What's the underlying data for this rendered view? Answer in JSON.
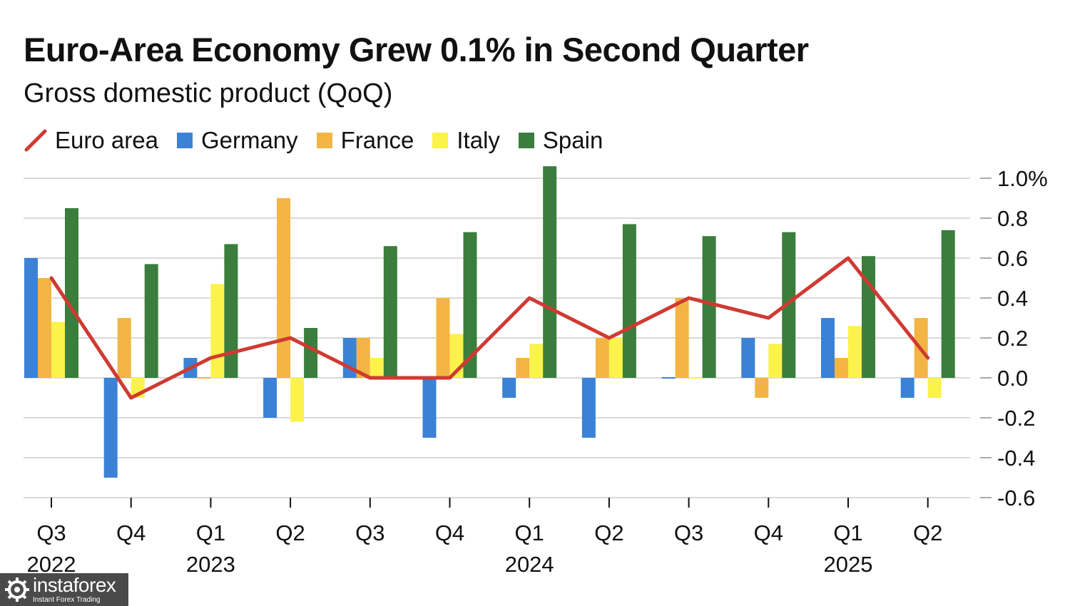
{
  "chart_data": {
    "type": "bar",
    "title": "Euro-Area Economy Grew 0.1% in Second Quarter",
    "subtitle": "Gross domestic product (QoQ)",
    "categories": [
      "Q3 2022",
      "Q4 2022",
      "Q1 2023",
      "Q2 2023",
      "Q3 2023",
      "Q4 2023",
      "Q1 2024",
      "Q2 2024",
      "Q3 2024",
      "Q4 2024",
      "Q1 2025",
      "Q2 2025"
    ],
    "quarter_labels": [
      "Q3",
      "Q4",
      "Q1",
      "Q2",
      "Q3",
      "Q4",
      "Q1",
      "Q2",
      "Q3",
      "Q4",
      "Q1",
      "Q2"
    ],
    "year_labels": [
      {
        "label": "2022",
        "index": 0
      },
      {
        "label": "2023",
        "index": 2
      },
      {
        "label": "2024",
        "index": 6
      },
      {
        "label": "2025",
        "index": 10
      }
    ],
    "series": [
      {
        "name": "Germany",
        "kind": "bar",
        "color": "#3b82d6",
        "values": [
          0.6,
          -0.5,
          0.1,
          -0.2,
          0.2,
          -0.3,
          -0.1,
          -0.3,
          0.0,
          0.2,
          0.3,
          -0.1
        ]
      },
      {
        "name": "France",
        "kind": "bar",
        "color": "#f2b544",
        "values": [
          0.5,
          0.3,
          0.0,
          0.9,
          0.2,
          0.4,
          0.1,
          0.2,
          0.4,
          -0.1,
          0.1,
          0.3
        ]
      },
      {
        "name": "Italy",
        "kind": "bar",
        "color": "#fbf24a",
        "values": [
          0.28,
          -0.1,
          0.47,
          -0.22,
          0.1,
          0.22,
          0.17,
          0.2,
          0.0,
          0.17,
          0.26,
          -0.1
        ]
      },
      {
        "name": "Spain",
        "kind": "bar",
        "color": "#3b7d3c",
        "values": [
          0.85,
          0.57,
          0.67,
          0.25,
          0.66,
          0.73,
          1.06,
          0.77,
          0.71,
          0.73,
          0.61,
          0.74
        ]
      },
      {
        "name": "Euro area",
        "kind": "line",
        "color": "#cf3a32",
        "values": [
          0.5,
          -0.1,
          0.1,
          0.2,
          0.0,
          0.0,
          0.4,
          0.2,
          0.4,
          0.3,
          0.6,
          0.1
        ]
      }
    ],
    "legend_order": [
      "Euro area",
      "Germany",
      "France",
      "Italy",
      "Spain"
    ],
    "ylim": [
      -0.6,
      1.0
    ],
    "yticks": [
      {
        "value": 1.0,
        "label": "1.0%"
      },
      {
        "value": 0.8,
        "label": "0.8"
      },
      {
        "value": 0.6,
        "label": "0.6"
      },
      {
        "value": 0.4,
        "label": "0.4"
      },
      {
        "value": 0.2,
        "label": "0.2"
      },
      {
        "value": 0.0,
        "label": "0.0"
      },
      {
        "value": -0.2,
        "label": "-0.2"
      },
      {
        "value": -0.4,
        "label": "-0.4"
      },
      {
        "value": -0.6,
        "label": "-0.6"
      }
    ],
    "grid": true,
    "legend_position": "top-left",
    "yaxis_position": "right"
  },
  "watermark": {
    "brand": "instaforex",
    "tagline": "Instant Forex Trading"
  }
}
